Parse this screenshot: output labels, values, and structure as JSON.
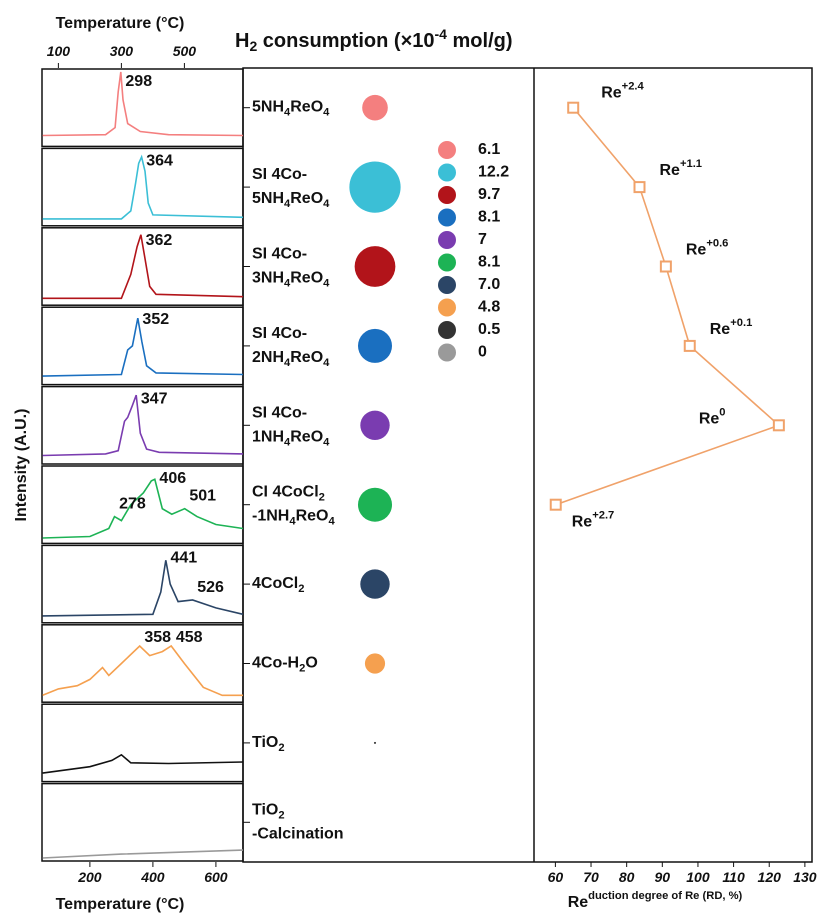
{
  "chart_data": [
    {
      "type": "line",
      "xlabel": "Temperature (°C)",
      "x2label": "Temperature (°C)",
      "ylabel": "Intensity (A.U.)",
      "xlim": [
        48,
        686
      ],
      "xticks": [
        200,
        400,
        600
      ],
      "x2ticks": [
        100,
        300,
        500
      ],
      "series": [
        {
          "color": "#f47f7f",
          "x": [
            50,
            250,
            280,
            290,
            298,
            305,
            320,
            360,
            450,
            686
          ],
          "values": [
            0.15,
            0.16,
            0.25,
            0.7,
            0.95,
            0.6,
            0.3,
            0.2,
            0.16,
            0.15
          ],
          "peak_labels": [
            298
          ]
        },
        {
          "color": "#3bbfd6",
          "x": [
            50,
            300,
            330,
            345,
            355,
            364,
            375,
            385,
            400,
            686
          ],
          "values": [
            0.1,
            0.1,
            0.2,
            0.55,
            0.8,
            0.88,
            0.7,
            0.3,
            0.15,
            0.12
          ],
          "peak_labels": [
            364
          ]
        },
        {
          "color": "#b2141a",
          "x": [
            50,
            300,
            330,
            350,
            362,
            375,
            390,
            410,
            686
          ],
          "values": [
            0.1,
            0.1,
            0.4,
            0.75,
            0.9,
            0.6,
            0.25,
            0.15,
            0.12
          ],
          "peak_labels": [
            362
          ]
        },
        {
          "color": "#1a6fc0",
          "x": [
            50,
            300,
            320,
            335,
            352,
            365,
            380,
            410,
            686
          ],
          "values": [
            0.12,
            0.14,
            0.45,
            0.5,
            0.85,
            0.55,
            0.25,
            0.16,
            0.14
          ],
          "peak_labels": [
            352
          ]
        },
        {
          "color": "#7a3cb0",
          "x": [
            50,
            250,
            290,
            310,
            320,
            335,
            347,
            360,
            380,
            420,
            686
          ],
          "values": [
            0.12,
            0.14,
            0.18,
            0.55,
            0.6,
            0.75,
            0.88,
            0.4,
            0.2,
            0.16,
            0.14
          ],
          "peak_labels": [
            347
          ]
        },
        {
          "color": "#1db355",
          "x": [
            50,
            200,
            260,
            278,
            300,
            330,
            370,
            395,
            406,
            430,
            460,
            501,
            540,
            600,
            686
          ],
          "values": [
            0.08,
            0.1,
            0.2,
            0.35,
            0.3,
            0.5,
            0.65,
            0.8,
            0.82,
            0.45,
            0.38,
            0.45,
            0.35,
            0.25,
            0.2
          ],
          "peak_labels": [
            278,
            406,
            501
          ]
        },
        {
          "color": "#2b4566",
          "x": [
            50,
            400,
            425,
            441,
            455,
            480,
            526,
            600,
            686
          ],
          "values": [
            0.1,
            0.12,
            0.4,
            0.8,
            0.5,
            0.28,
            0.3,
            0.2,
            0.12
          ],
          "peak_labels": [
            441,
            526
          ]
        },
        {
          "color": "#f5a04f",
          "x": [
            50,
            100,
            160,
            200,
            240,
            260,
            300,
            358,
            390,
            430,
            458,
            500,
            560,
            620,
            686
          ],
          "values": [
            0.1,
            0.18,
            0.22,
            0.3,
            0.45,
            0.35,
            0.5,
            0.72,
            0.6,
            0.65,
            0.72,
            0.5,
            0.2,
            0.1,
            0.1
          ],
          "peak_labels": [
            358,
            458
          ]
        },
        {
          "color": "#111111",
          "x": [
            50,
            200,
            270,
            300,
            330,
            450,
            686
          ],
          "values": [
            0.12,
            0.2,
            0.28,
            0.35,
            0.25,
            0.24,
            0.26
          ],
          "peak_labels": []
        },
        {
          "color": "#9a9a9a",
          "x": [
            50,
            300,
            686
          ],
          "values": [
            0.05,
            0.1,
            0.15
          ],
          "peak_labels": []
        }
      ]
    },
    {
      "type": "bubble",
      "title": "H2 consumption (×10-4 mol/g)",
      "categories": [
        [
          "5NH4ReO4"
        ],
        [
          "SI 4Co-",
          "5NH4ReO4"
        ],
        [
          "SI 4Co-",
          "3NH4ReO4"
        ],
        [
          "SI 4Co-",
          "2NH4ReO4"
        ],
        [
          "SI 4Co-",
          "1NH4ReO4"
        ],
        [
          "CI 4CoCl2",
          "-1NH4ReO4"
        ],
        [
          "4CoCl2"
        ],
        [
          "4Co-H2O"
        ],
        [
          "TiO2"
        ],
        [
          "TiO2",
          "-Calcination"
        ]
      ],
      "values": [
        6.1,
        12.2,
        9.7,
        8.1,
        7,
        8.1,
        7.0,
        4.8,
        0.5,
        0
      ],
      "value_labels": [
        "6.1",
        "12.2",
        "9.7",
        "8.1",
        "7",
        "8.1",
        "7.0",
        "4.8",
        "0.5",
        "0"
      ],
      "colors": [
        "#f47f7f",
        "#3bbfd6",
        "#b2141a",
        "#1a6fc0",
        "#7a3cb0",
        "#1db355",
        "#2b4566",
        "#f5a04f",
        "#333333",
        "#9a9a9a"
      ]
    },
    {
      "type": "line",
      "orientation": "horizontal",
      "xlabel": "Reduction degree of Re (RD, %)",
      "xlim": [
        54,
        132
      ],
      "xticks": [
        60,
        70,
        80,
        90,
        100,
        110,
        120,
        130
      ],
      "values": [
        65,
        83.6,
        91,
        97.7,
        122.7,
        60.1
      ],
      "point_labels": [
        "Re+2.4",
        "Re+1.1",
        "Re+0.6",
        "Re+0.1",
        "Re0",
        "Re+2.7"
      ],
      "color": "#f0a26a"
    }
  ]
}
